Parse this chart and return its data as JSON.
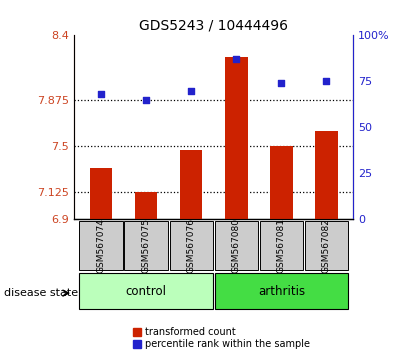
{
  "title": "GDS5243 / 10444496",
  "samples": [
    "GSM567074",
    "GSM567075",
    "GSM567076",
    "GSM567080",
    "GSM567081",
    "GSM567082"
  ],
  "groups": [
    "control",
    "control",
    "control",
    "arthritis",
    "arthritis",
    "arthritis"
  ],
  "bar_values": [
    7.32,
    7.12,
    7.47,
    8.22,
    7.5,
    7.62
  ],
  "dot_values": [
    68,
    65,
    70,
    87,
    74,
    75
  ],
  "ylim_left": [
    6.9,
    8.4
  ],
  "ylim_right": [
    0,
    100
  ],
  "yticks_left": [
    6.9,
    7.125,
    7.5,
    7.875,
    8.4
  ],
  "ytick_labels_left": [
    "6.9",
    "7.125",
    "7.5",
    "7.875",
    "8.4"
  ],
  "yticks_right": [
    0,
    25,
    50,
    75,
    100
  ],
  "ytick_labels_right": [
    "0",
    "25",
    "50",
    "75",
    "100%"
  ],
  "hlines": [
    7.125,
    7.5,
    7.875
  ],
  "bar_color": "#cc2200",
  "dot_color": "#2222cc",
  "control_color": "#bbffbb",
  "arthritis_color": "#44dd44",
  "label_box_color": "#cccccc",
  "bar_bottom": 6.9,
  "legend_bar_label": "transformed count",
  "legend_dot_label": "percentile rank within the sample",
  "group_label": "disease state"
}
